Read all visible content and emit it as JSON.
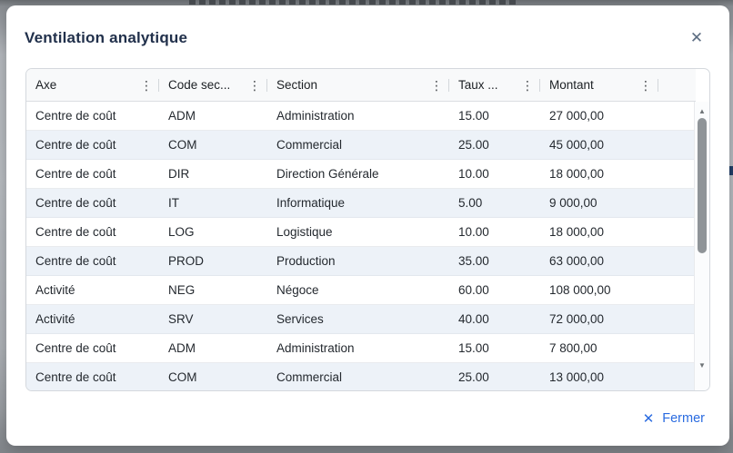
{
  "modal": {
    "title": "Ventilation analytique",
    "footer": {
      "close_label": "Fermer"
    }
  },
  "icons": {
    "close": "✕",
    "kebab": "⋮",
    "scroll_up": "▲",
    "scroll_down": "▼"
  },
  "colors": {
    "accent_blue": "#2a6be0",
    "title_navy": "#21304b",
    "alt_row": "#edf2f8",
    "header_bg": "#f8f9fa",
    "backdrop_gray": "#b9bdc2"
  },
  "table": {
    "columns": [
      {
        "label": "Axe"
      },
      {
        "label": "Code sec..."
      },
      {
        "label": "Section"
      },
      {
        "label": "Taux ..."
      },
      {
        "label": "Montant"
      }
    ],
    "rows": [
      {
        "axe": "Centre de coût",
        "code": "ADM",
        "section": "Administration",
        "taux": "15.00",
        "montant": "27 000,00"
      },
      {
        "axe": "Centre de coût",
        "code": "COM",
        "section": "Commercial",
        "taux": "25.00",
        "montant": "45 000,00"
      },
      {
        "axe": "Centre de coût",
        "code": "DIR",
        "section": "Direction Générale",
        "taux": "10.00",
        "montant": "18 000,00"
      },
      {
        "axe": "Centre de coût",
        "code": "IT",
        "section": "Informatique",
        "taux": "5.00",
        "montant": "9 000,00"
      },
      {
        "axe": "Centre de coût",
        "code": "LOG",
        "section": "Logistique",
        "taux": "10.00",
        "montant": "18 000,00"
      },
      {
        "axe": "Centre de coût",
        "code": "PROD",
        "section": "Production",
        "taux": "35.00",
        "montant": "63 000,00"
      },
      {
        "axe": "Activité",
        "code": "NEG",
        "section": "Négoce",
        "taux": "60.00",
        "montant": "108 000,00"
      },
      {
        "axe": "Activité",
        "code": "SRV",
        "section": "Services",
        "taux": "40.00",
        "montant": "72 000,00"
      },
      {
        "axe": "Centre de coût",
        "code": "ADM",
        "section": "Administration",
        "taux": "15.00",
        "montant": "7 800,00"
      },
      {
        "axe": "Centre de coût",
        "code": "COM",
        "section": "Commercial",
        "taux": "25.00",
        "montant": "13 000,00"
      }
    ]
  }
}
